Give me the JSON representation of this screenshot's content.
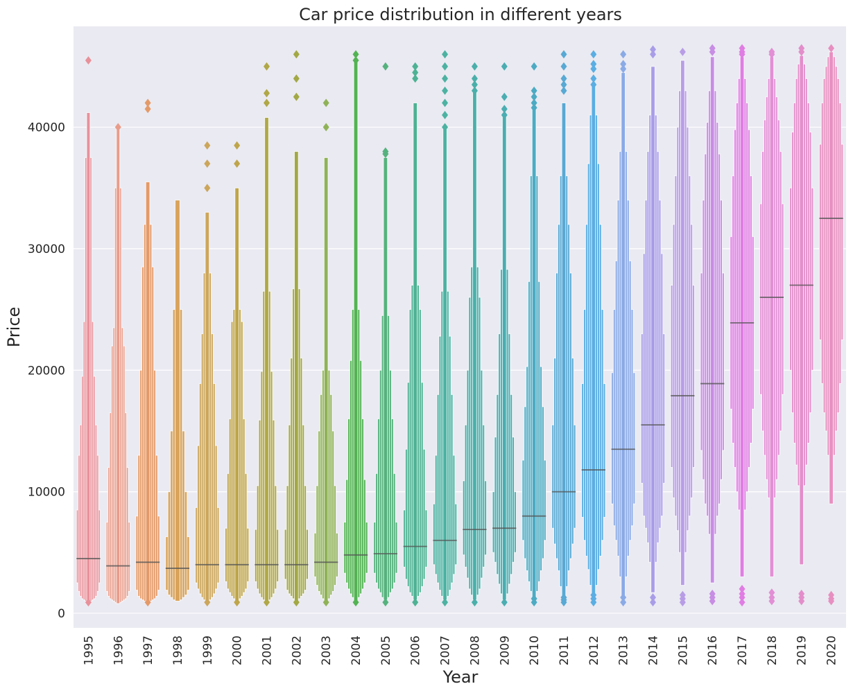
{
  "chart_data": {
    "type": "boxen",
    "title": "Car price distribution in different years",
    "xlabel": "Year",
    "ylabel": "Price",
    "ylim": [
      -1200,
      48300
    ],
    "yticks": [
      0,
      10000,
      20000,
      30000,
      40000
    ],
    "grid": true,
    "legend": "none",
    "background": "#EAEAF2",
    "categories": [
      "1995",
      "1996",
      "1997",
      "1998",
      "1999",
      "2000",
      "2001",
      "2002",
      "2003",
      "2004",
      "2005",
      "2006",
      "2007",
      "2008",
      "2009",
      "2010",
      "2011",
      "2012",
      "2013",
      "2014",
      "2015",
      "2016",
      "2017",
      "2018",
      "2019",
      "2020"
    ],
    "colors": [
      "#E8919A",
      "#E99C8A",
      "#E49A68",
      "#D8A35B",
      "#CCA65B",
      "#BFA54A",
      "#B0A746",
      "#A2A844",
      "#8FB257",
      "#52B353",
      "#55B27D",
      "#4DB293",
      "#4CB2A2",
      "#4AAFAA",
      "#4AADB1",
      "#4CABC3",
      "#58A9D4",
      "#5AAEE3",
      "#8AAAE6",
      "#A99DE8",
      "#B89DE6",
      "#C88DE4",
      "#E07DE3",
      "#E28FD5",
      "#E38ECB",
      "#E78FC0"
    ],
    "boxes": [
      {
        "median": 4500,
        "levels": [
          [
            2500,
            8500
          ],
          [
            1800,
            13000
          ],
          [
            1400,
            15500
          ],
          [
            1200,
            19500
          ],
          [
            1100,
            24000
          ],
          [
            1000,
            37500
          ],
          [
            900,
            41200
          ]
        ],
        "outliers": [
          45500,
          900
        ]
      },
      {
        "median": 3900,
        "levels": [
          [
            1800,
            7500
          ],
          [
            1400,
            12000
          ],
          [
            1200,
            16500
          ],
          [
            1100,
            22000
          ],
          [
            1000,
            23500
          ],
          [
            900,
            35000
          ],
          [
            800,
            40000
          ]
        ],
        "outliers": [
          40000
        ]
      },
      {
        "median": 4200,
        "levels": [
          [
            1900,
            8000
          ],
          [
            1400,
            13000
          ],
          [
            1200,
            20000
          ],
          [
            1100,
            28500
          ],
          [
            1000,
            32000
          ],
          [
            900,
            35500
          ]
        ],
        "outliers": [
          42000,
          41500,
          900
        ]
      },
      {
        "median": 3700,
        "levels": [
          [
            1900,
            6300
          ],
          [
            1500,
            10000
          ],
          [
            1300,
            15000
          ],
          [
            1100,
            25000
          ],
          [
            1000,
            34000
          ]
        ],
        "outliers": []
      },
      {
        "median": 4000,
        "levels": [
          [
            2500,
            8700
          ],
          [
            2000,
            13800
          ],
          [
            1600,
            18900
          ],
          [
            1300,
            23000
          ],
          [
            1100,
            28000
          ],
          [
            1000,
            33000
          ]
        ],
        "outliers": [
          38500,
          37000,
          35000,
          900
        ]
      },
      {
        "median": 4000,
        "levels": [
          [
            2600,
            7000
          ],
          [
            2000,
            11500
          ],
          [
            1700,
            16000
          ],
          [
            1400,
            24000
          ],
          [
            1200,
            25000
          ],
          [
            1000,
            35000
          ]
        ],
        "outliers": [
          38500,
          37000,
          900
        ]
      },
      {
        "median": 4000,
        "levels": [
          [
            2600,
            6900
          ],
          [
            2000,
            10500
          ],
          [
            1600,
            15900
          ],
          [
            1300,
            19900
          ],
          [
            1100,
            26500
          ],
          [
            1000,
            40800
          ]
        ],
        "outliers": [
          45000,
          42800,
          42000,
          900
        ]
      },
      {
        "median": 4000,
        "levels": [
          [
            2800,
            6900
          ],
          [
            1900,
            10500
          ],
          [
            1600,
            15500
          ],
          [
            1400,
            21000
          ],
          [
            1200,
            26700
          ],
          [
            1000,
            38000
          ]
        ],
        "outliers": [
          46000,
          44000,
          42500,
          900
        ]
      },
      {
        "median": 4200,
        "levels": [
          [
            3000,
            6600
          ],
          [
            2300,
            10500
          ],
          [
            1800,
            15000
          ],
          [
            1500,
            18000
          ],
          [
            1200,
            20000
          ],
          [
            1000,
            37500
          ]
        ],
        "outliers": [
          42000,
          40000,
          900
        ]
      },
      {
        "median": 4800,
        "levels": [
          [
            3300,
            7500
          ],
          [
            2500,
            11000
          ],
          [
            2000,
            16000
          ],
          [
            1600,
            20800
          ],
          [
            1300,
            25000
          ],
          [
            1000,
            45500
          ]
        ],
        "outliers": [
          46000,
          45500,
          900
        ]
      },
      {
        "median": 4900,
        "levels": [
          [
            3300,
            7500
          ],
          [
            2500,
            11500
          ],
          [
            2000,
            16000
          ],
          [
            1700,
            20000
          ],
          [
            1300,
            24500
          ],
          [
            1100,
            37500
          ]
        ],
        "outliers": [
          45000,
          38000,
          37800,
          900
        ]
      },
      {
        "median": 5500,
        "levels": [
          [
            3800,
            8500
          ],
          [
            2800,
            13500
          ],
          [
            2200,
            19000
          ],
          [
            1700,
            25000
          ],
          [
            1400,
            27000
          ],
          [
            1100,
            42000
          ]
        ],
        "outliers": [
          45000,
          44500,
          44000,
          900
        ]
      },
      {
        "median": 6000,
        "levels": [
          [
            4000,
            9000
          ],
          [
            3200,
            13000
          ],
          [
            2500,
            18000
          ],
          [
            1900,
            22800
          ],
          [
            1400,
            26500
          ],
          [
            1100,
            40000
          ]
        ],
        "outliers": [
          46000,
          45000,
          44000,
          43000,
          42000,
          41000,
          40000,
          900
        ]
      },
      {
        "median": 6900,
        "levels": [
          [
            4800,
            10900
          ],
          [
            3800,
            15500
          ],
          [
            2900,
            20000
          ],
          [
            2000,
            26000
          ],
          [
            1500,
            28500
          ],
          [
            1100,
            43000
          ]
        ],
        "outliers": [
          45000,
          44000,
          43500,
          43000,
          900
        ]
      },
      {
        "median": 7000,
        "levels": [
          [
            5000,
            10000
          ],
          [
            4200,
            14500
          ],
          [
            3200,
            18000
          ],
          [
            2400,
            23000
          ],
          [
            1600,
            28300
          ],
          [
            1100,
            41000
          ]
        ],
        "outliers": [
          45000,
          42500,
          41500,
          41000,
          900
        ]
      },
      {
        "median": 8000,
        "levels": [
          [
            6000,
            12600
          ],
          [
            4500,
            17000
          ],
          [
            3500,
            20300
          ],
          [
            2600,
            27300
          ],
          [
            1800,
            36000
          ],
          [
            1100,
            41500
          ]
        ],
        "outliers": [
          45000,
          43000,
          42500,
          42000,
          41600,
          900,
          1200
        ]
      },
      {
        "median": 10000,
        "levels": [
          [
            7000,
            15500
          ],
          [
            5700,
            21000
          ],
          [
            4500,
            28000
          ],
          [
            3500,
            32000
          ],
          [
            2200,
            36000
          ],
          [
            1200,
            42000
          ]
        ],
        "outliers": [
          46000,
          45000,
          44000,
          43500,
          43000,
          900,
          1100,
          1300
        ]
      },
      {
        "median": 11800,
        "levels": [
          [
            7900,
            18900
          ],
          [
            6000,
            25000
          ],
          [
            4700,
            32000
          ],
          [
            3600,
            37000
          ],
          [
            2300,
            41000
          ],
          [
            1300,
            43500
          ]
        ],
        "outliers": [
          46000,
          45200,
          44800,
          44000,
          43500,
          900,
          1200,
          1500
        ]
      },
      {
        "median": 13500,
        "levels": [
          [
            9000,
            19800
          ],
          [
            7200,
            25000
          ],
          [
            6000,
            29000
          ],
          [
            4700,
            34000
          ],
          [
            3000,
            38000
          ],
          [
            1400,
            44500
          ]
        ],
        "outliers": [
          46000,
          45200,
          44800,
          900,
          1300
        ]
      },
      {
        "median": 15500,
        "levels": [
          [
            10700,
            23000
          ],
          [
            8000,
            29600
          ],
          [
            7000,
            34000
          ],
          [
            5800,
            38000
          ],
          [
            4200,
            41000
          ],
          [
            1700,
            45000
          ]
        ],
        "outliers": [
          46400,
          46000,
          900,
          1300
        ]
      },
      {
        "median": 17900,
        "levels": [
          [
            12000,
            27000
          ],
          [
            9500,
            32000
          ],
          [
            8000,
            36000
          ],
          [
            6800,
            40000
          ],
          [
            5000,
            43000
          ],
          [
            2300,
            45500
          ]
        ],
        "outliers": [
          46200,
          1500,
          1200,
          900
        ]
      },
      {
        "median": 18900,
        "levels": [
          [
            13400,
            28000
          ],
          [
            11000,
            34000
          ],
          [
            9000,
            37800
          ],
          [
            8000,
            40400
          ],
          [
            6500,
            43000
          ],
          [
            2500,
            45800
          ]
        ],
        "outliers": [
          46500,
          46200,
          1600,
          1300,
          1000
        ]
      },
      {
        "median": 23900,
        "levels": [
          [
            16800,
            31000
          ],
          [
            14000,
            36000
          ],
          [
            12000,
            39800
          ],
          [
            10000,
            42000
          ],
          [
            8500,
            44000
          ],
          [
            3000,
            45800
          ]
        ],
        "outliers": [
          46500,
          46200,
          46000,
          2000,
          1600,
          1300,
          900
        ]
      },
      {
        "median": 26000,
        "levels": [
          [
            18000,
            33700
          ],
          [
            15000,
            38000
          ],
          [
            13000,
            40600
          ],
          [
            11000,
            42500
          ],
          [
            9500,
            44000
          ],
          [
            3000,
            45800
          ]
        ],
        "outliers": [
          46200,
          46000,
          1700,
          1300,
          1000
        ]
      },
      {
        "median": 27000,
        "levels": [
          [
            20000,
            35000
          ],
          [
            16500,
            39600
          ],
          [
            14000,
            42000
          ],
          [
            12200,
            44000
          ],
          [
            10500,
            45200
          ],
          [
            4000,
            45900
          ]
        ],
        "outliers": [
          46500,
          46200,
          1600,
          1300,
          1000
        ]
      },
      {
        "median": 32500,
        "levels": [
          [
            22500,
            38600
          ],
          [
            18900,
            42000
          ],
          [
            16500,
            44000
          ],
          [
            15000,
            45000
          ],
          [
            13000,
            45800
          ],
          [
            9000,
            46200
          ]
        ],
        "outliers": [
          46500,
          1500,
          1200,
          1000
        ]
      }
    ]
  }
}
